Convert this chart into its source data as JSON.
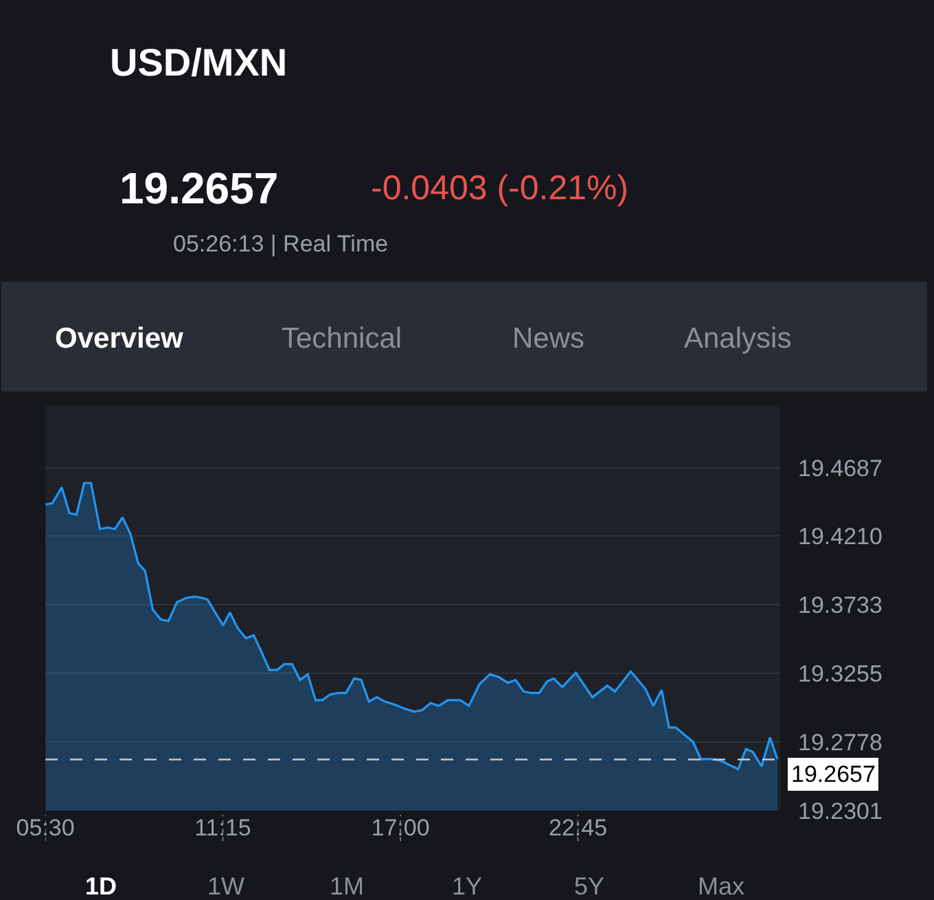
{
  "chart_data": {
    "type": "area",
    "title": "USD/MXN",
    "annotations": [
      "19.2657",
      "-0.0403 (-0.21%)",
      "05:26:13 | Real Time",
      "Overview",
      "Technical",
      "News",
      "Analysis",
      "1D",
      "1W",
      "1M",
      "1Y",
      "5Y",
      "Max"
    ],
    "x": [
      5.51,
      5.73,
      6.03,
      6.28,
      6.51,
      6.76,
      6.98,
      7.27,
      7.52,
      7.75,
      8.0,
      8.25,
      8.51,
      8.73,
      8.98,
      9.24,
      9.49,
      9.76,
      10.05,
      10.34,
      10.6,
      10.75,
      11.0,
      11.26,
      11.48,
      11.73,
      12.0,
      12.25,
      12.49,
      12.76,
      13.01,
      13.24,
      13.49,
      13.75,
      14.0,
      14.25,
      14.47,
      14.73,
      14.99,
      15.24,
      15.5,
      15.73,
      15.98,
      16.24,
      16.49,
      16.79,
      17.15,
      17.44,
      17.7,
      17.98,
      18.24,
      18.54,
      18.94,
      19.22,
      19.56,
      19.9,
      20.19,
      20.48,
      20.73,
      20.99,
      21.24,
      21.5,
      21.75,
      21.97,
      22.24,
      22.68,
      23.22,
      23.7,
      23.95,
      24.46,
      24.93,
      25.19,
      25.46,
      25.7,
      25.92,
      26.19,
      26.48,
      26.73,
      27.06,
      27.36,
      27.65,
      27.94,
      28.19,
      28.41,
      28.7,
      28.97,
      29.21
    ],
    "series": [
      {
        "color": "#2196f3",
        "values": [
          19.443,
          19.444,
          19.455,
          19.437,
          19.436,
          19.458,
          19.458,
          19.426,
          19.427,
          19.426,
          19.434,
          19.423,
          19.402,
          19.397,
          19.37,
          19.363,
          19.362,
          19.375,
          19.378,
          19.379,
          19.378,
          19.377,
          19.368,
          19.359,
          19.368,
          19.357,
          19.35,
          19.352,
          19.341,
          19.328,
          19.328,
          19.332,
          19.332,
          19.321,
          19.325,
          19.307,
          19.307,
          19.311,
          19.312,
          19.312,
          19.322,
          19.321,
          19.306,
          19.309,
          19.306,
          19.304,
          19.301,
          19.299,
          19.3,
          19.305,
          19.303,
          19.307,
          19.307,
          19.303,
          19.318,
          19.325,
          19.323,
          19.319,
          19.321,
          19.313,
          19.312,
          19.312,
          19.32,
          19.322,
          19.316,
          19.326,
          19.309,
          19.317,
          19.313,
          19.327,
          19.315,
          19.303,
          19.314,
          19.288,
          19.288,
          19.283,
          19.278,
          19.266,
          19.266,
          19.265,
          19.262,
          19.259,
          19.273,
          19.271,
          19.261,
          19.281,
          19.266
        ]
      }
    ],
    "xlim": [
      5.5,
      29.3
    ],
    "xticks": [
      {
        "value": 5.5,
        "label": "05:30"
      },
      {
        "value": 11.25,
        "label": "11:15"
      },
      {
        "value": 17.0,
        "label": "17:00"
      },
      {
        "value": 22.75,
        "label": "22:45"
      }
    ],
    "ylim": [
      19.2301,
      19.512
    ],
    "yticks": [
      19.2301,
      19.2778,
      19.3255,
      19.3733,
      {
        "value": 19.421,
        "label": "19.4210"
      },
      19.4687
    ],
    "ref_lines": [
      {
        "axis": "y",
        "value": 19.2657,
        "label": "19.2657",
        "color": "#c8c8c8",
        "line_style": "dashed"
      }
    ],
    "grid": "y",
    "marker": "none",
    "line_style": "solid"
  }
}
